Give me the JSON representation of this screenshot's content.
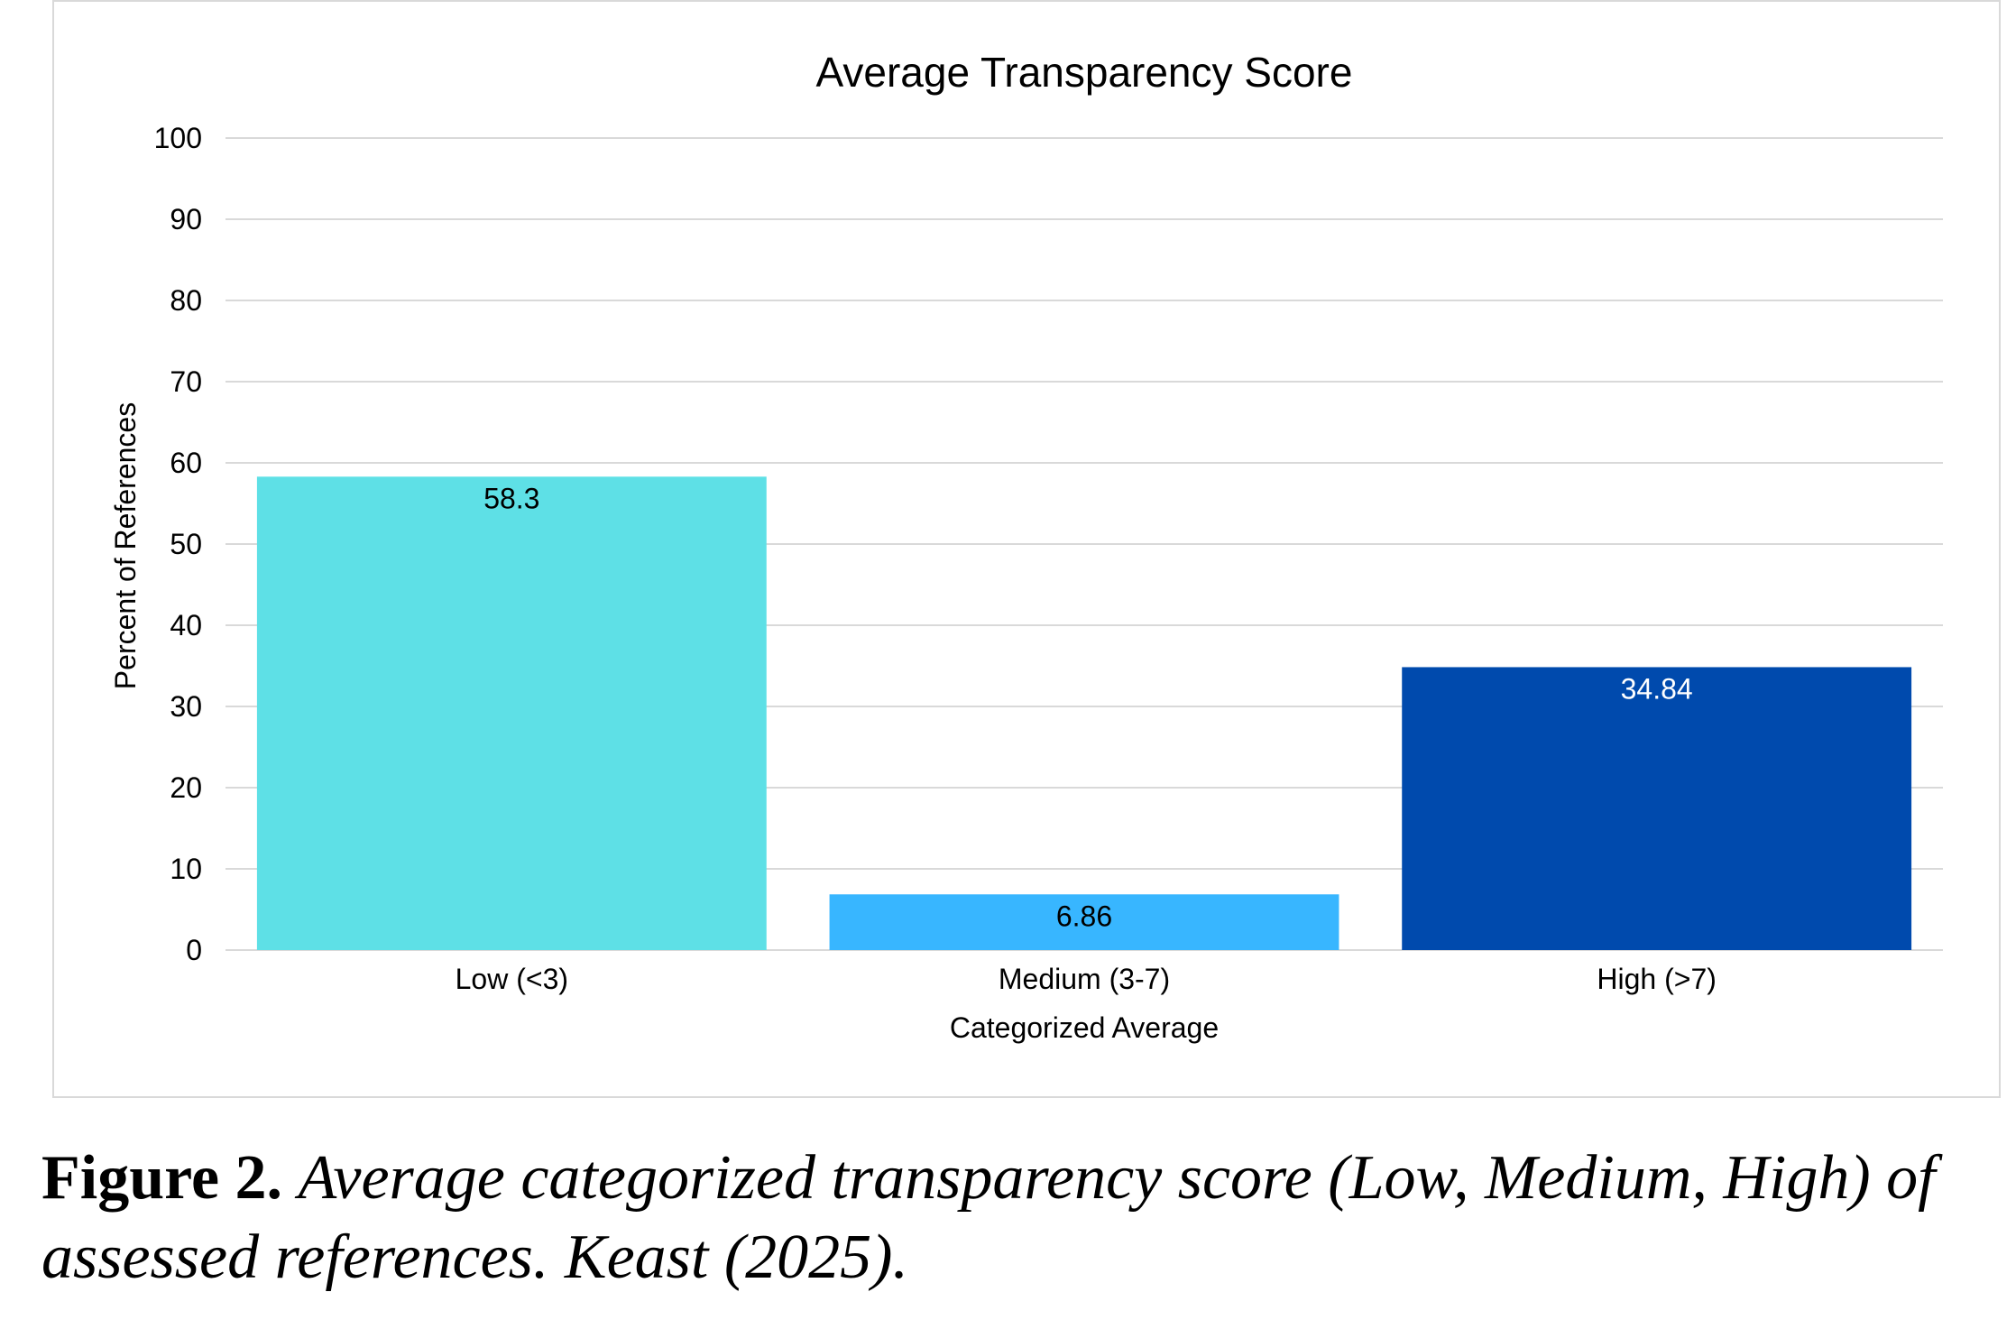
{
  "chart_data": {
    "type": "bar",
    "title": "Average Transparency Score",
    "xlabel": "Categorized Average",
    "ylabel": "Percent of References",
    "categories": [
      "Low (<3)",
      "Medium (3-7)",
      "High (>7)"
    ],
    "values": [
      58.3,
      6.86,
      34.84
    ],
    "value_labels": [
      "58.3",
      "6.86",
      "34.84"
    ],
    "ylim": [
      0,
      100
    ],
    "yticks": [
      "0",
      "10",
      "20",
      "30",
      "40",
      "50",
      "60",
      "70",
      "80",
      "90",
      "100"
    ],
    "grid": true,
    "legend": "none",
    "bar_colors": [
      "#5ee0e6",
      "#38b6ff",
      "#004aad"
    ],
    "label_colors": [
      "#000000",
      "#000000",
      "#ffffff"
    ],
    "gridline_color": "#d9d9d9"
  },
  "caption": {
    "label": "Figure 2.",
    "text": "Average categorized transparency score (Low, Medium, High) of assessed references. Keast (2025)."
  }
}
